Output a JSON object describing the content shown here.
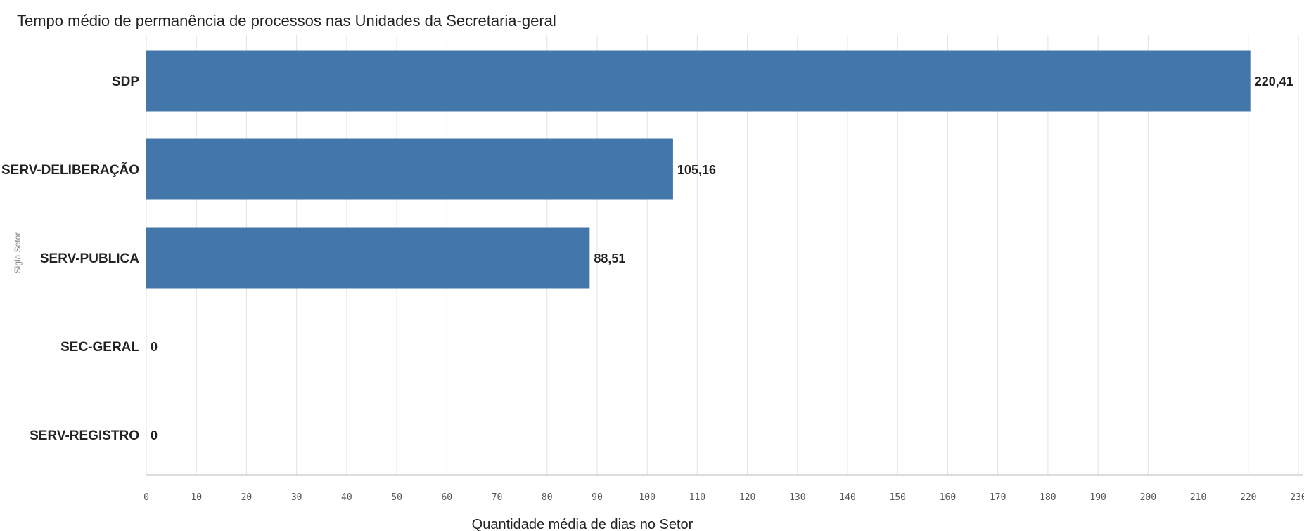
{
  "chart_data": {
    "type": "bar",
    "orientation": "horizontal",
    "title": "Tempo médio de permanência de processos nas Unidades da Secretaria-geral",
    "xlabel": "Quantidade média de dias no Setor",
    "ylabel": "Sigla Setor",
    "categories": [
      "SDP",
      "SERV-DELIBERAÇÃO",
      "SERV-PUBLICA",
      "SEC-GERAL",
      "SERV-REGISTRO"
    ],
    "values": [
      220.41,
      105.16,
      88.51,
      0,
      0
    ],
    "value_labels": [
      "220,41",
      "105,16",
      "88,51",
      "0",
      "0"
    ],
    "xlim": [
      0,
      230
    ],
    "xticks": [
      0,
      10,
      20,
      30,
      40,
      50,
      60,
      70,
      80,
      90,
      100,
      110,
      120,
      130,
      140,
      150,
      160,
      170,
      180,
      190,
      200,
      210,
      220,
      230
    ],
    "grid": true,
    "bar_color": "#4477a9"
  }
}
